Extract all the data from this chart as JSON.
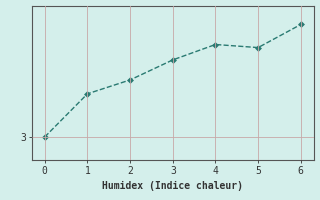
{
  "x": [
    0,
    1,
    2,
    3,
    4,
    5,
    6
  ],
  "y": [
    3.0,
    3.28,
    3.37,
    3.5,
    3.6,
    3.58,
    3.73
  ],
  "xlabel": "Humidex (Indice chaleur)",
  "xlim": [
    -0.3,
    6.3
  ],
  "ylim": [
    2.85,
    3.85
  ],
  "yticks": [
    3.0
  ],
  "ytick_labels": [
    "3"
  ],
  "xticks": [
    0,
    1,
    2,
    3,
    4,
    5,
    6
  ],
  "background_color": "#d4efeb",
  "plot_bg_color": "#d4efeb",
  "line_color": "#2a7a72",
  "grid_color": "#c8a8a8",
  "marker": "D",
  "marker_size": 3,
  "line_width": 1.0,
  "line_style": "--"
}
